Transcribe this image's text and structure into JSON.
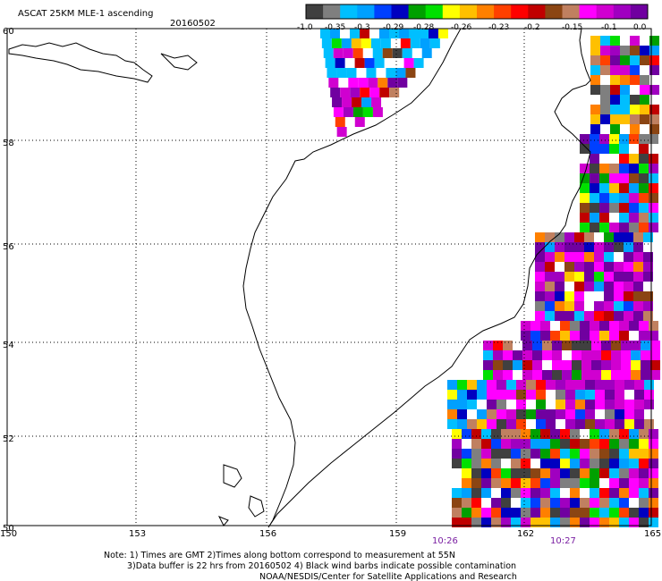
{
  "header": {
    "title": "ASCAT 25KM MLE-1 ascending",
    "date": "20160502"
  },
  "colorbar": {
    "colors": [
      "#404040",
      "#7f7f7f",
      "#00bfff",
      "#00a0ff",
      "#0040ff",
      "#0000c0",
      "#00a000",
      "#00e000",
      "#ffff00",
      "#ffc000",
      "#ff8000",
      "#ff4000",
      "#ff0000",
      "#c00000",
      "#8b4513",
      "#c08060",
      "#ff00ff",
      "#d000d0",
      "#a000c0",
      "#7000a0"
    ],
    "labels": [
      "-1.0",
      "-0.35",
      "-0.3",
      "-0.29",
      "-0.28",
      "-0.26",
      "-0.23",
      "-0.2",
      "-0.15",
      "-0.1",
      "0.0"
    ]
  },
  "axes": {
    "lon_labels": [
      "150",
      "153",
      "156",
      "159",
      "162",
      "165"
    ],
    "lat_labels": [
      "60",
      "58",
      "56",
      "54",
      "52",
      "50"
    ]
  },
  "times": [
    "10:26",
    "10:27"
  ],
  "notes": [
    "Note: 1) Times are GMT 2)Times along bottom correspond to measurement at 55N",
    "3)Data buffer is 22 hrs from 20160502 4) Black wind barbs indicate possible contamination",
    "NOAA/NESDIS/Center for Satellite Applications and Research"
  ]
}
